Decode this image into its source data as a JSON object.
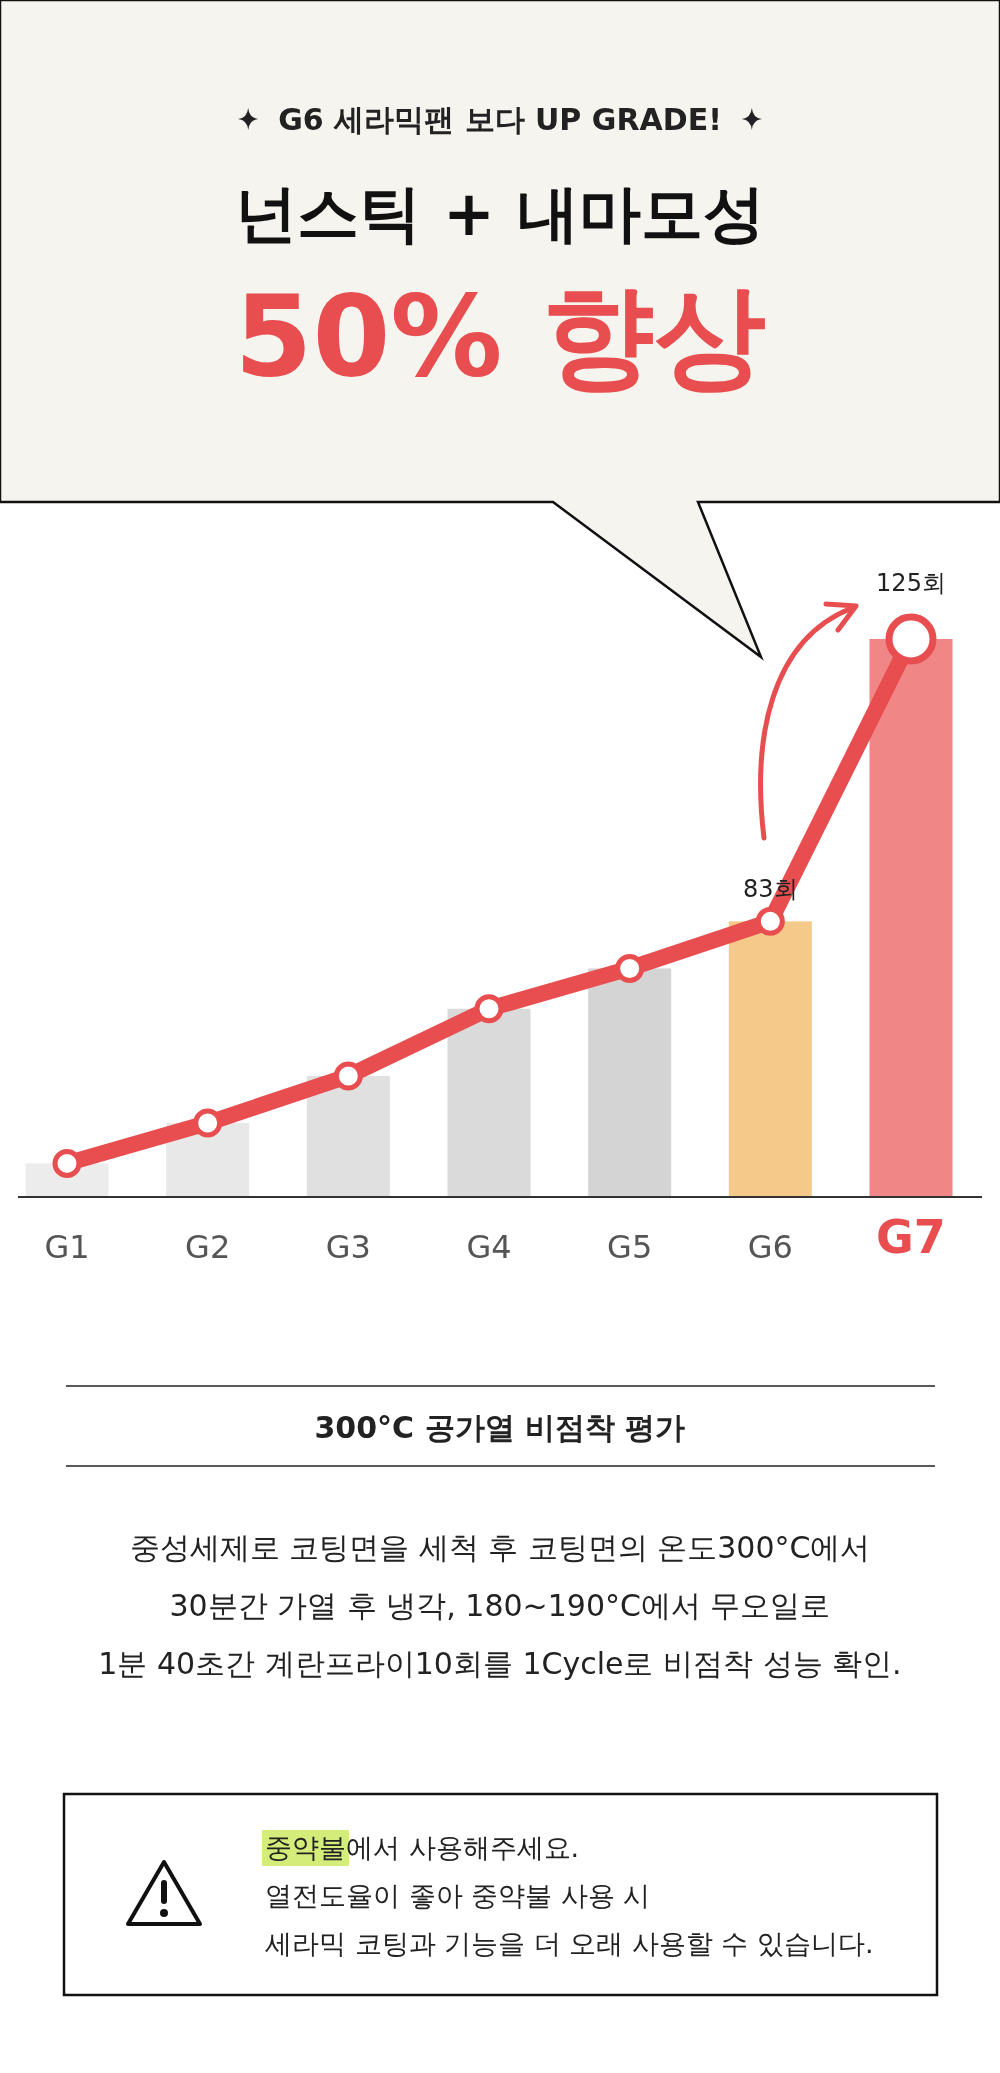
{
  "chart_data": {
    "type": "bar",
    "subtitle": "G6 세라믹팬 보다 UP GRADE!",
    "title": "넌스틱 + 내마모성",
    "ylim": [
      42,
      125
    ],
    "tick_labels": "x",
    "categories": [
      "G1",
      "G2",
      "G3",
      "G4",
      "G5",
      "G6",
      "G7"
    ],
    "series": [
      {
        "colors": [
          "#ececec",
          "#e8e8e8",
          "#e0e0e0",
          "#dadada",
          "#d4d4d4",
          "#f5c98a",
          "#f08686"
        ],
        "values": [
          47,
          53,
          60,
          70,
          76,
          83,
          125
        ]
      },
      {
        "type": "line",
        "color": "#e84e50",
        "marker": "circle",
        "values": [
          47,
          53,
          60,
          70,
          76,
          83,
          125
        ],
        "value_labels": [
          null,
          null,
          null,
          null,
          null,
          "83회",
          "125회"
        ]
      }
    ],
    "annotations": [
      "50% 향상",
      "300°C 공가열 비점착 평가",
      "중성세제로 코팅면을 세척 후 코팅면의 온도300°C에서",
      "30분간 가열 후 냉각, 180~190°C에서 무오일로",
      "1분 40초간 계란프라이10회를 1Cycle로 비점착 성능 확인.",
      "중약불에서 사용해주세요.",
      "열전도율이 좋아 중약불 사용 시",
      "세라믹 코팅과 기능을 더 오래 사용할 수 있습니다."
    ]
  }
}
